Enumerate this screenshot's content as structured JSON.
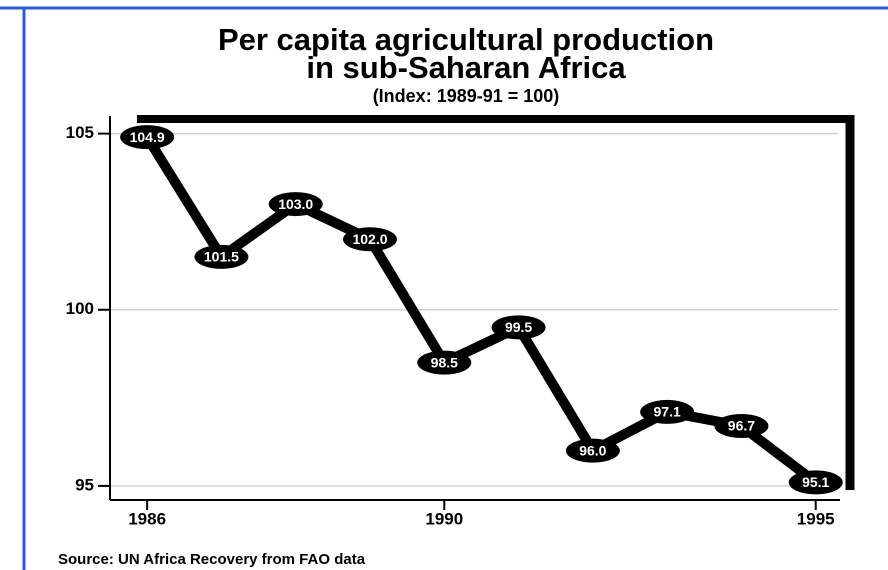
{
  "chart_data": {
    "type": "line",
    "title": [
      "Per capita agricultural production",
      "in sub-Saharan Africa"
    ],
    "subtitle": "(Index: 1989-91 = 100)",
    "source": "Source: UN Africa Recovery from FAO data",
    "x": [
      1986,
      1987,
      1988,
      1989,
      1990,
      1991,
      1992,
      1993,
      1994,
      1995
    ],
    "series": [
      {
        "name": "Per capita agricultural production index",
        "color": "#000000",
        "values": [
          104.9,
          101.5,
          103.0,
          102.0,
          98.5,
          99.5,
          96.0,
          97.1,
          96.7,
          95.1
        ],
        "value_labels": [
          "104.9",
          "101.5",
          "103.0",
          "102.0",
          "98.5",
          "99.5",
          "96.0",
          "97.1",
          "96.7",
          "95.1"
        ]
      }
    ],
    "xlim": [
      1985.5,
      1995.3
    ],
    "xticks": [
      1986,
      1990,
      1995
    ],
    "ylim": [
      94.6,
      105.5
    ],
    "yticks": [
      95,
      100,
      105
    ],
    "grid": true
  }
}
